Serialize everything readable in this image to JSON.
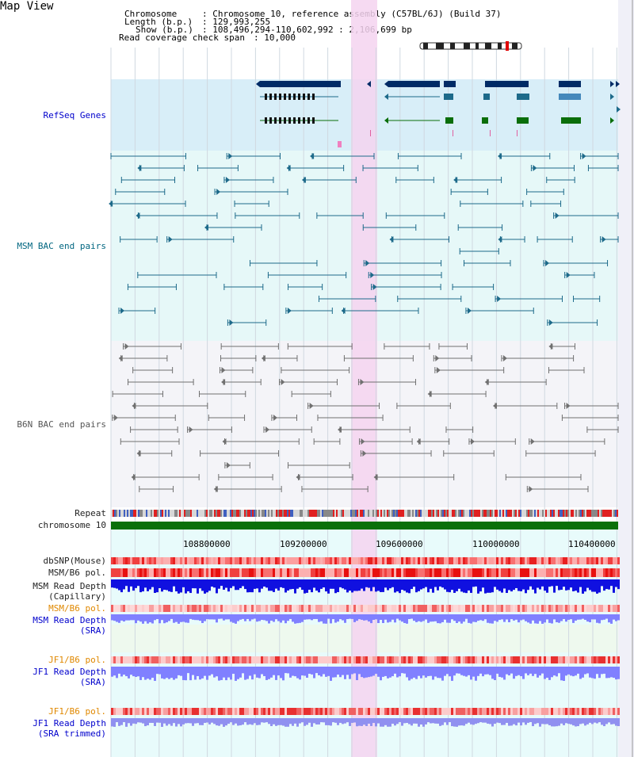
{
  "header": {
    "title": "Map View",
    "chromosome_label": "Chromosome",
    "chromosome_value": ": Chromosome 10, reference assembly (C57BL/6J) (Build 37)",
    "length_label": "Length (b.p.)",
    "length_value": ": 129,993,255",
    "show_label": "Show (b.p.)",
    "show_value": ": 108,496,294-110,602,992 : 2,106,699 bp",
    "coverage_label": "Read coverage check span",
    "coverage_value": ": 10,000"
  },
  "tracks": {
    "refseq": "RefSeq Genes",
    "msm_bac": "MSM BAC end pairs",
    "b6n_bac": "B6N BAC end pairs",
    "repeat": "Repeat",
    "chromosome": "chromosome 10",
    "dbsnp": "dbSNP(Mouse)",
    "msm_b6_pol": "MSM/B6 pol.",
    "msm_read_depth_cap_1": "MSM Read Depth",
    "msm_read_depth_cap_2": "(Capillary)",
    "msm_b6_pol_2": "MSM/B6 pol.",
    "msm_read_depth_sra_1": "MSM Read Depth",
    "msm_read_depth_sra_2": "(SRA)",
    "jf1_b6_pol": "JF1/B6 pol.",
    "jf1_read_depth_sra_1": "JF1 Read Depth",
    "jf1_read_depth_sra_2": "(SRA)",
    "jf1_b6_pol_2": "JF1/B6 pol.",
    "jf1_read_depth_tr_1": "JF1 Read Depth",
    "jf1_read_depth_tr_2": "(SRA trimmed)"
  },
  "axis": {
    "ticks": [
      "108800000",
      "109200000",
      "109600000",
      "110000000",
      "110400000"
    ]
  },
  "colors": {
    "refseq_bg": "#d8eef8",
    "msm_bg": "#e6f8f8",
    "b6n_bg": "#f4f4f8",
    "highlight": "#f4d4f0",
    "gene_dark": "#002b66",
    "gene_teal": "#1d6a8a",
    "gene_green": "#0a6e0a",
    "chromosome_bar": "#0a700a",
    "snp_red": "#f05050",
    "depth_blue": "#1010e0",
    "depth_light": "#8080ff"
  }
}
